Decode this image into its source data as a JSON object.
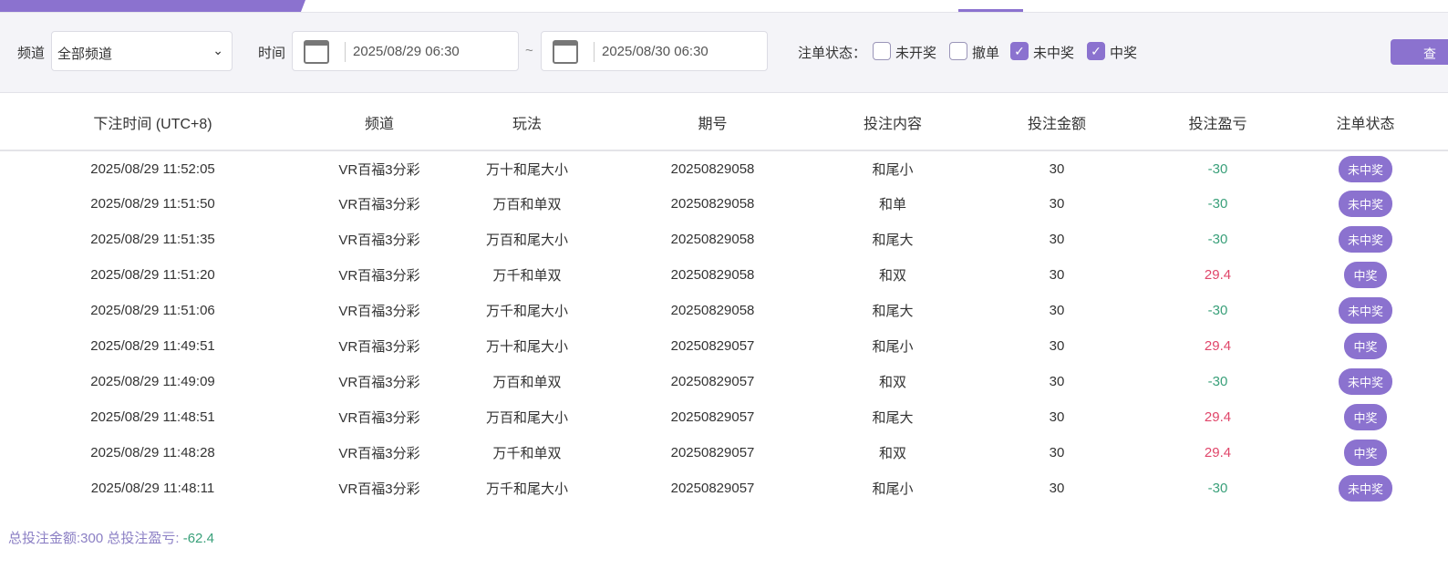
{
  "colors": {
    "accent": "#8b72cf",
    "loss": "#3aa07a",
    "win": "#e0466a"
  },
  "filter": {
    "channel_label": "频道",
    "channel_value": "全部频道",
    "time_label": "时间",
    "start": "2025/08/29 06:30",
    "tilde": "~",
    "end": "2025/08/30 06:30",
    "status_label": "注单状态：",
    "statuses": [
      {
        "label": "未开奖",
        "checked": false
      },
      {
        "label": "撤单",
        "checked": false
      },
      {
        "label": "未中奖",
        "checked": true
      },
      {
        "label": "中奖",
        "checked": true
      }
    ],
    "query_label": "查"
  },
  "table": {
    "headers": [
      "下注时间 (UTC+8)",
      "频道",
      "玩法",
      "期号",
      "投注内容",
      "投注金额",
      "投注盈亏",
      "注单状态"
    ],
    "rows": [
      [
        "2025/08/29 11:52:05",
        "VR百福3分彩",
        "万十和尾大小",
        "20250829058",
        "和尾小",
        "30",
        "-30",
        "未中奖"
      ],
      [
        "2025/08/29 11:51:50",
        "VR百福3分彩",
        "万百和单双",
        "20250829058",
        "和单",
        "30",
        "-30",
        "未中奖"
      ],
      [
        "2025/08/29 11:51:35",
        "VR百福3分彩",
        "万百和尾大小",
        "20250829058",
        "和尾大",
        "30",
        "-30",
        "未中奖"
      ],
      [
        "2025/08/29 11:51:20",
        "VR百福3分彩",
        "万千和单双",
        "20250829058",
        "和双",
        "30",
        "29.4",
        "中奖"
      ],
      [
        "2025/08/29 11:51:06",
        "VR百福3分彩",
        "万千和尾大小",
        "20250829058",
        "和尾大",
        "30",
        "-30",
        "未中奖"
      ],
      [
        "2025/08/29 11:49:51",
        "VR百福3分彩",
        "万十和尾大小",
        "20250829057",
        "和尾小",
        "30",
        "29.4",
        "中奖"
      ],
      [
        "2025/08/29 11:49:09",
        "VR百福3分彩",
        "万百和单双",
        "20250829057",
        "和双",
        "30",
        "-30",
        "未中奖"
      ],
      [
        "2025/08/29 11:48:51",
        "VR百福3分彩",
        "万百和尾大小",
        "20250829057",
        "和尾大",
        "30",
        "29.4",
        "中奖"
      ],
      [
        "2025/08/29 11:48:28",
        "VR百福3分彩",
        "万千和单双",
        "20250829057",
        "和双",
        "30",
        "29.4",
        "中奖"
      ],
      [
        "2025/08/29 11:48:11",
        "VR百福3分彩",
        "万千和尾大小",
        "20250829057",
        "和尾小",
        "30",
        "-30",
        "未中奖"
      ]
    ]
  },
  "summary": {
    "total_bet_label": "总投注金额:",
    "total_bet": "300",
    "total_pl_label": "总投注盈亏:",
    "total_pl": "-62.4"
  }
}
